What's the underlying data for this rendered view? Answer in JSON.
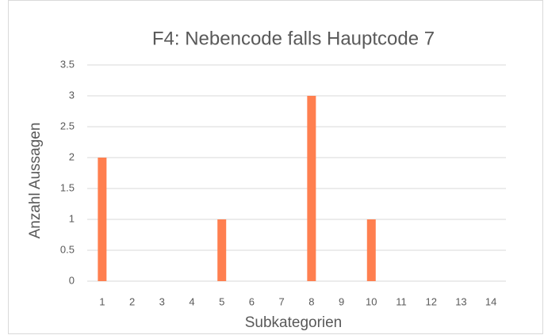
{
  "chart_data": {
    "type": "bar",
    "title": "F4: Nebencode falls Hauptcode 7",
    "x_label": "Subkategorien",
    "y_label": "Anzahl Aussagen",
    "categories": [
      "1",
      "2",
      "3",
      "4",
      "5",
      "6",
      "7",
      "8",
      "9",
      "10",
      "11",
      "12",
      "13",
      "14"
    ],
    "values": [
      2,
      0,
      0,
      0,
      1,
      0,
      0,
      3,
      0,
      1,
      0,
      0,
      0,
      0
    ],
    "color": "#ff7f4f",
    "ylim": [
      0,
      3.5
    ],
    "yticks": [
      0,
      0.5,
      1,
      1.5,
      2,
      2.5,
      3,
      3.5
    ],
    "grid": true
  }
}
